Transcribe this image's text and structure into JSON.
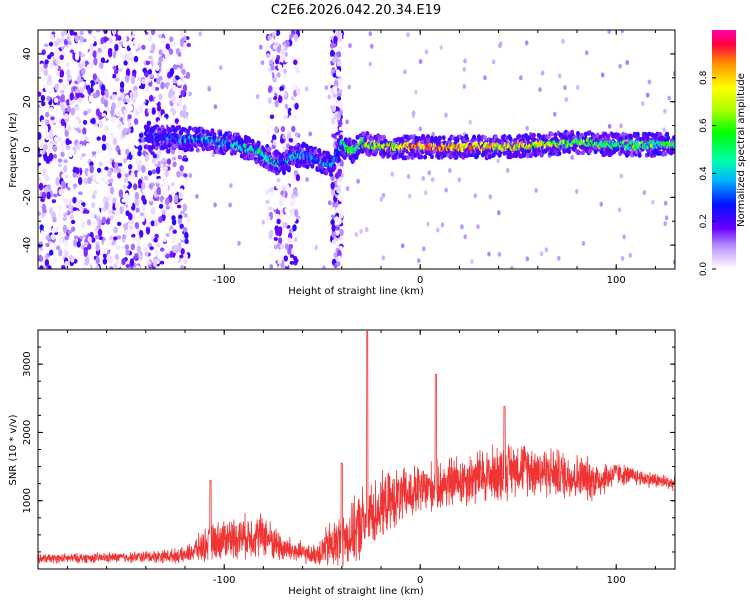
{
  "figure_title": "C2E6.2026.042.20.34.E19",
  "chart_data": [
    {
      "type": "heatmap",
      "name": "spectrogram",
      "xlabel": "Height of straight line (km)",
      "ylabel": "Frequency (Hz)",
      "xlim": [
        -195,
        130
      ],
      "ylim": [
        -50,
        50
      ],
      "xticks": [
        -100,
        0,
        100
      ],
      "yticks": [
        -40,
        -20,
        0,
        20,
        40
      ],
      "colorbar": {
        "label": "Normalized spectral amplitude",
        "range": [
          0,
          1
        ],
        "ticks": [
          0.0,
          0.2,
          0.4,
          0.6,
          0.8
        ]
      },
      "ridge": {
        "x": [
          -140,
          -125,
          -110,
          -100,
          -90,
          -80,
          -75,
          -70,
          -65,
          -60,
          -55,
          -50,
          -45,
          -40,
          -35,
          -30,
          -20,
          -10,
          0,
          20,
          40,
          60,
          80,
          100,
          130
        ],
        "freq": [
          5,
          5,
          4,
          3,
          1,
          -2,
          -5,
          -6,
          -3,
          -2,
          -4,
          -5,
          -6,
          2,
          -1,
          3,
          1,
          1,
          1,
          1,
          1,
          2,
          3,
          2,
          2
        ],
        "amp": [
          0.3,
          0.35,
          0.45,
          0.4,
          0.5,
          0.5,
          0.45,
          0.4,
          0.5,
          0.45,
          0.4,
          0.45,
          0.4,
          0.5,
          0.6,
          0.65,
          0.8,
          0.85,
          0.95,
          0.9,
          0.85,
          0.8,
          0.7,
          0.6,
          0.6
        ]
      },
      "noise_bands_x": [
        [
          -195,
          -118
        ],
        [
          -78,
          -62
        ],
        [
          -45,
          -40
        ]
      ]
    },
    {
      "type": "line",
      "name": "snr",
      "xlabel": "Height of straight line (km)",
      "ylabel": "SNR (10 * v/v)",
      "xlim": [
        -195,
        130
      ],
      "ylim": [
        0,
        3500
      ],
      "xticks": [
        -100,
        0,
        100
      ],
      "yticks": [
        1000,
        2000,
        3000
      ],
      "color": "#f03434",
      "envelope": {
        "x": [
          -195,
          -150,
          -120,
          -110,
          -100,
          -80,
          -70,
          -55,
          -45,
          -35,
          -30,
          -25,
          -15,
          0,
          20,
          40,
          50,
          60,
          80,
          90,
          100,
          110,
          130
        ],
        "base": [
          150,
          170,
          200,
          350,
          450,
          500,
          300,
          200,
          350,
          500,
          650,
          800,
          1000,
          1150,
          1300,
          1400,
          1500,
          1450,
          1350,
          1300,
          1400,
          1350,
          1250
        ],
        "amp": [
          80,
          90,
          130,
          280,
          350,
          380,
          250,
          150,
          450,
          500,
          650,
          600,
          500,
          450,
          450,
          500,
          450,
          450,
          400,
          350,
          200,
          150,
          120
        ]
      },
      "peaks": [
        {
          "x": -27,
          "y": 3480
        },
        {
          "x": 8,
          "y": 2850
        },
        {
          "x": 43,
          "y": 2380
        },
        {
          "x": -107,
          "y": 1300
        },
        {
          "x": -40,
          "y": 1550
        }
      ]
    }
  ]
}
